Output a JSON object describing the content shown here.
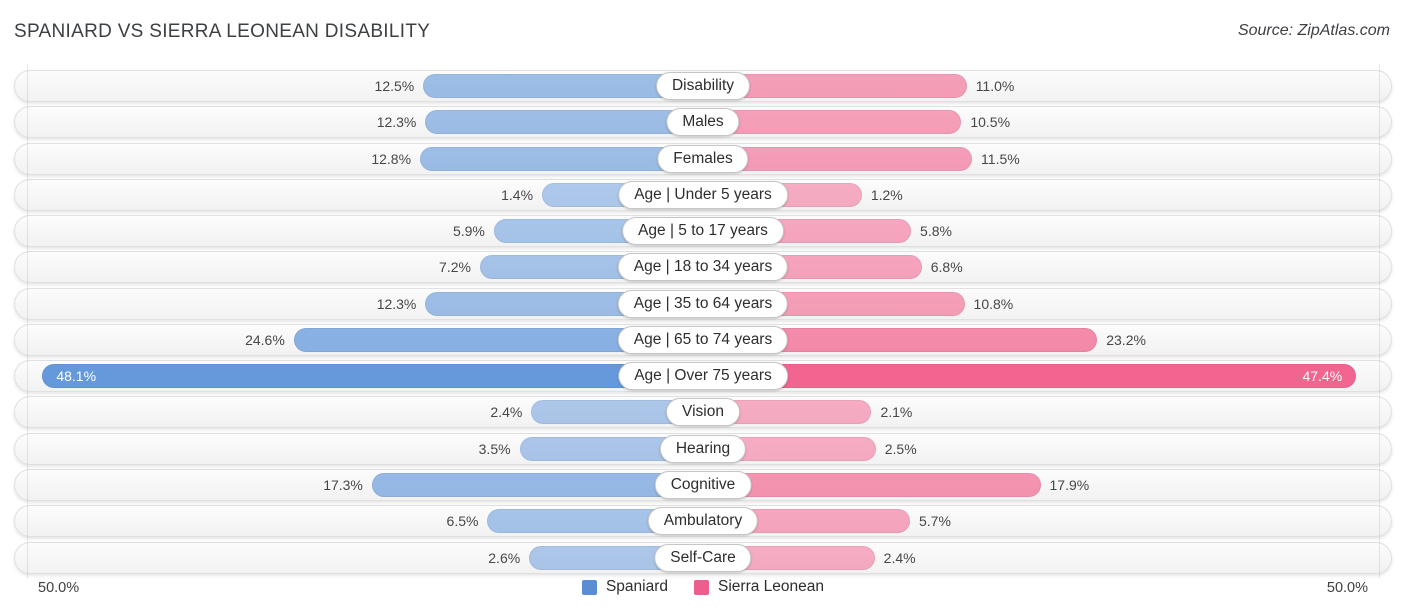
{
  "title": "SPANIARD VS SIERRA LEONEAN DISABILITY",
  "source": "Source: ZipAtlas.com",
  "axis": {
    "left_label": "50.0%",
    "right_label": "50.0%",
    "max_percent": 50.0
  },
  "legend": {
    "spaniard": {
      "label": "Spaniard",
      "color": "#5b8dd3"
    },
    "sierra_leonean": {
      "label": "Sierra Leonean",
      "color": "#ee5d8d"
    }
  },
  "colors": {
    "spaniard_bar_base": "#6699db",
    "sierra_leonean_bar_base": "#f2648f",
    "track": "#f5f5f5"
  },
  "chart_data": {
    "type": "bar",
    "orientation": "diverging-horizontal",
    "title": "SPANIARD VS SIERRA LEONEAN DISABILITY",
    "value_format": "percent",
    "axis_max_percent": 50.0,
    "legend_position": "bottom-center",
    "categories": [
      "Disability",
      "Males",
      "Females",
      "Age | Under 5 years",
      "Age | 5 to 17 years",
      "Age | 18 to 34 years",
      "Age | 35 to 64 years",
      "Age | 65 to 74 years",
      "Age | Over 75 years",
      "Vision",
      "Hearing",
      "Cognitive",
      "Ambulatory",
      "Self-Care"
    ],
    "series": [
      {
        "name": "Spaniard",
        "side": "left",
        "values": [
          12.5,
          12.3,
          12.8,
          1.4,
          5.9,
          7.2,
          12.3,
          24.6,
          48.1,
          2.4,
          3.5,
          17.3,
          6.5,
          2.6
        ]
      },
      {
        "name": "Sierra Leonean",
        "side": "right",
        "values": [
          11.0,
          10.5,
          11.5,
          1.2,
          5.8,
          6.8,
          10.8,
          23.2,
          47.4,
          2.1,
          2.5,
          17.9,
          5.7,
          2.4
        ]
      }
    ]
  }
}
